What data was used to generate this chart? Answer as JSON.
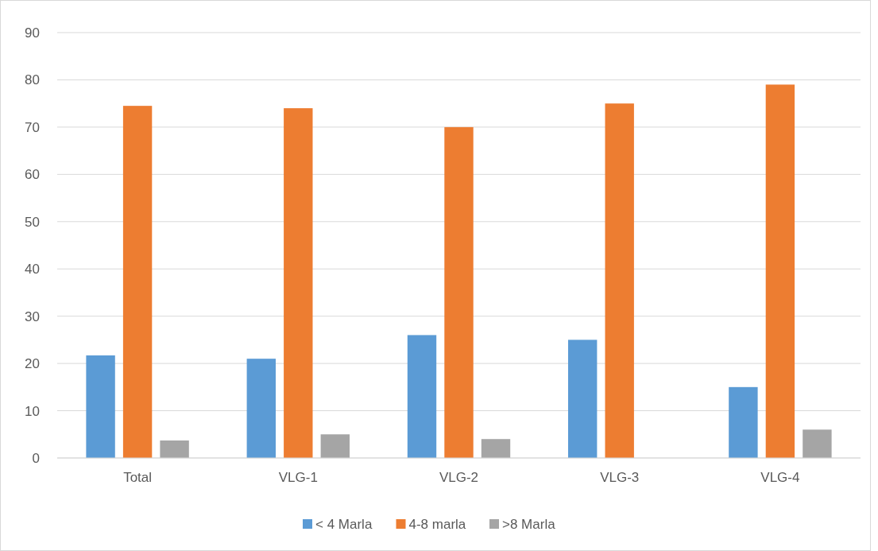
{
  "chart_data": {
    "type": "bar",
    "categories": [
      "Total",
      "VLG-1",
      "VLG-2",
      "VLG-3",
      "VLG-4"
    ],
    "series": [
      {
        "name": "< 4 Marla",
        "color": "#5b9bd5",
        "values": [
          21.7,
          21,
          26,
          25,
          15
        ]
      },
      {
        "name": "4-8 marla",
        "color": "#ed7d31",
        "values": [
          74.5,
          74,
          70,
          75,
          79
        ]
      },
      {
        "name": ">8 Marla",
        "color": "#a5a5a5",
        "values": [
          3.7,
          5,
          4,
          0,
          6
        ]
      }
    ],
    "ylim": [
      0,
      90
    ],
    "yticks": [
      0,
      10,
      20,
      30,
      40,
      50,
      60,
      70,
      80,
      90
    ],
    "grid": "y",
    "legend": "bottom"
  }
}
